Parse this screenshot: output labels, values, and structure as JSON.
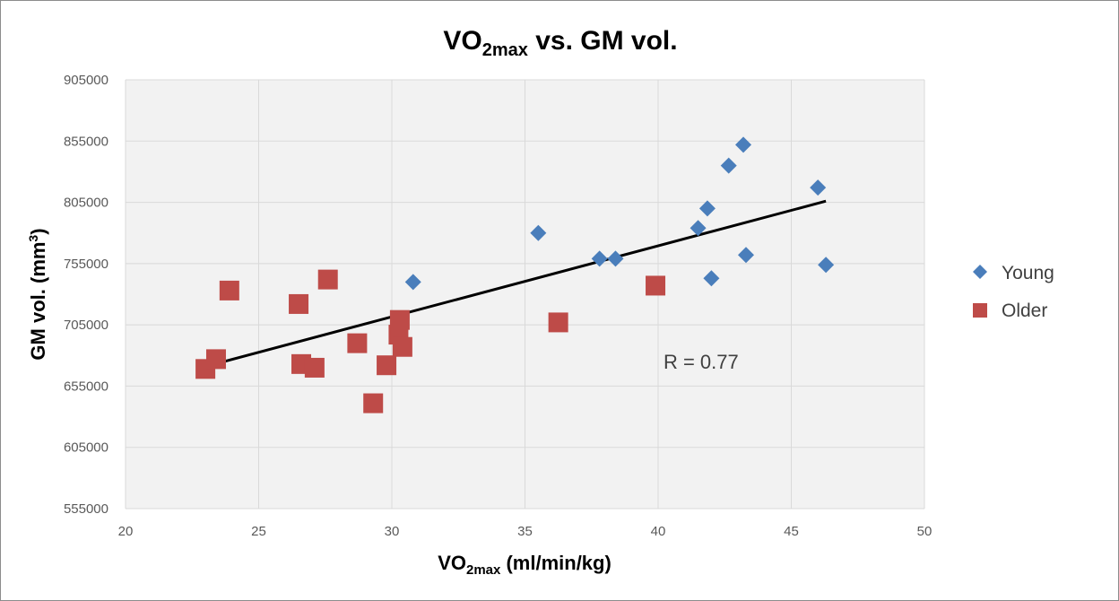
{
  "chart_data": {
    "type": "scatter",
    "title": {
      "main": "VO",
      "sub": "2max",
      "rest": " vs. GM vol."
    },
    "xlabel": {
      "main": "VO",
      "sub": "2max",
      "rest": " (ml/min/kg)"
    },
    "ylabel": {
      "main": "GM vol. (mm",
      "sup": "3",
      "rest": ")"
    },
    "xlim": [
      20,
      50
    ],
    "ylim": [
      555000,
      905000
    ],
    "x_ticks": [
      20,
      25,
      30,
      35,
      40,
      45,
      50
    ],
    "y_ticks": [
      555000,
      605000,
      655000,
      705000,
      755000,
      805000,
      855000,
      905000
    ],
    "x_tick_labels": [
      "20",
      "25",
      "30",
      "35",
      "40",
      "45",
      "50"
    ],
    "y_tick_labels": [
      "555000",
      "605000",
      "655000",
      "705000",
      "755000",
      "805000",
      "855000",
      "905000"
    ],
    "grid": true,
    "legend_position": "right",
    "series": [
      {
        "name": "Young",
        "marker": "diamond",
        "color": "#4a7ebb",
        "points": [
          [
            30.8,
            740000
          ],
          [
            35.5,
            780000
          ],
          [
            37.8,
            759000
          ],
          [
            38.4,
            759000
          ],
          [
            41.5,
            784000
          ],
          [
            41.85,
            800000
          ],
          [
            42.0,
            743000
          ],
          [
            42.65,
            835000
          ],
          [
            43.2,
            852000
          ],
          [
            43.3,
            762000
          ],
          [
            46.0,
            817000
          ],
          [
            46.3,
            754000
          ]
        ]
      },
      {
        "name": "Older",
        "marker": "square",
        "color": "#be4b48",
        "points": [
          [
            23.0,
            669000
          ],
          [
            23.4,
            677000
          ],
          [
            23.9,
            733000
          ],
          [
            26.5,
            722000
          ],
          [
            26.6,
            673000
          ],
          [
            27.1,
            670000
          ],
          [
            27.6,
            742000
          ],
          [
            28.7,
            690000
          ],
          [
            29.3,
            641000
          ],
          [
            29.8,
            672000
          ],
          [
            30.25,
            697000
          ],
          [
            30.3,
            709000
          ],
          [
            30.4,
            687000
          ],
          [
            36.25,
            707000
          ],
          [
            39.9,
            737000
          ]
        ]
      }
    ],
    "trendline": {
      "color": "#000000",
      "from": [
        23.0,
        671000
      ],
      "to": [
        46.3,
        806000
      ]
    },
    "annotation": {
      "text": "R = 0.77",
      "x": 40.2,
      "y": 675000
    }
  }
}
